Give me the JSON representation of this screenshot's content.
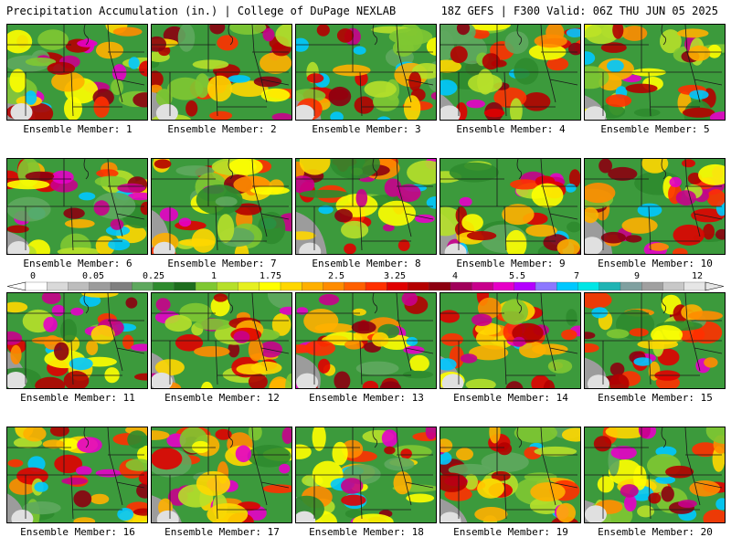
{
  "header": {
    "left_title": "Precipitation Accumulation (in.) | College of DuPage NEXLAB",
    "right_title": "18Z GEFS | F300 Valid: 06Z THU JUN 05 2025"
  },
  "colorbar": {
    "labels": [
      "0",
      "0.05",
      "0.25",
      "1",
      "1.75",
      "2.5",
      "3.25",
      "4",
      "5.5",
      "7",
      "9",
      "12"
    ],
    "colors": [
      "#ffffff",
      "#d9d9d9",
      "#bdbdbd",
      "#9c9c9c",
      "#7f7f7f",
      "#5ea85e",
      "#2e8b2e",
      "#1e6e1e",
      "#7fc832",
      "#b6e02a",
      "#e6f020",
      "#ffff00",
      "#ffd700",
      "#ffb000",
      "#ff8c00",
      "#ff6000",
      "#ff3000",
      "#e00000",
      "#b40000",
      "#8c0010",
      "#a0005a",
      "#c8008c",
      "#e600c8",
      "#b400ff",
      "#8c78ff",
      "#00c8ff",
      "#00e6e6",
      "#20b4b4",
      "#80a0a0",
      "#a0a0a0",
      "#c8c8c8",
      "#e6e6e6"
    ]
  },
  "members": [
    {
      "label": "Ensemble Member: 1"
    },
    {
      "label": "Ensemble Member: 2"
    },
    {
      "label": "Ensemble Member: 3"
    },
    {
      "label": "Ensemble Member: 4"
    },
    {
      "label": "Ensemble Member: 5"
    },
    {
      "label": "Ensemble Member: 6"
    },
    {
      "label": "Ensemble Member: 7"
    },
    {
      "label": "Ensemble Member: 8"
    },
    {
      "label": "Ensemble Member: 9"
    },
    {
      "label": "Ensemble Member: 10"
    },
    {
      "label": "Ensemble Member: 11"
    },
    {
      "label": "Ensemble Member: 12"
    },
    {
      "label": "Ensemble Member: 13"
    },
    {
      "label": "Ensemble Member: 14"
    },
    {
      "label": "Ensemble Member: 15"
    },
    {
      "label": "Ensemble Member: 16"
    },
    {
      "label": "Ensemble Member: 17"
    },
    {
      "label": "Ensemble Member: 18"
    },
    {
      "label": "Ensemble Member: 19"
    },
    {
      "label": "Ensemble Member: 20"
    }
  ]
}
